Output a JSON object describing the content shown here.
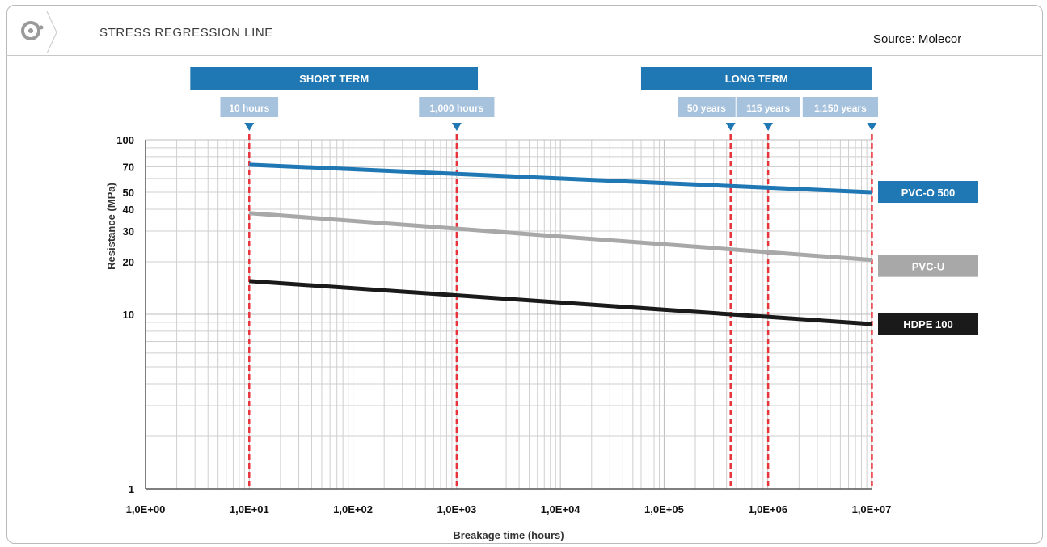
{
  "header": {
    "title": "STRESS REGRESSION LINE",
    "source": "Source: Molecor",
    "logo_icon": "molecor-logo-icon"
  },
  "colors": {
    "accent": "#1f77b4",
    "pvc_o": "#1f77b4",
    "pvc_u": "#a8a8a8",
    "hdpe": "#1a1a1a",
    "marker_line": "#e8333a",
    "time_box": "#a7c2dd",
    "grid": "#cfcfcf"
  },
  "chart_data": {
    "type": "line",
    "title": "STRESS REGRESSION LINE",
    "xlabel": "Breakage time (hours)",
    "ylabel": "Resistance (MPa)",
    "x_scale": "log",
    "y_scale": "log",
    "xlim": [
      1,
      10000000
    ],
    "ylim": [
      1,
      100
    ],
    "grid": true,
    "x_ticks": [
      {
        "value": 1,
        "label": "1,0E+00"
      },
      {
        "value": 10,
        "label": "1,0E+01"
      },
      {
        "value": 100,
        "label": "1,0E+02"
      },
      {
        "value": 1000,
        "label": "1,0E+03"
      },
      {
        "value": 10000,
        "label": "1,0E+04"
      },
      {
        "value": 100000,
        "label": "1,0E+05"
      },
      {
        "value": 1000000,
        "label": "1,0E+06"
      },
      {
        "value": 10000000,
        "label": "1,0E+07"
      }
    ],
    "y_ticks": [
      {
        "value": 1,
        "label": "1"
      },
      {
        "value": 10,
        "label": "10"
      },
      {
        "value": 20,
        "label": "20"
      },
      {
        "value": 30,
        "label": "30"
      },
      {
        "value": 40,
        "label": "40"
      },
      {
        "value": 50,
        "label": "50"
      },
      {
        "value": 70,
        "label": "70"
      },
      {
        "value": 100,
        "label": "100"
      }
    ],
    "series": [
      {
        "name": "PVC-O 500",
        "color": "#1f77b4",
        "x": [
          10,
          10000000
        ],
        "y": [
          72,
          50
        ]
      },
      {
        "name": "PVC-U",
        "color": "#a8a8a8",
        "x": [
          10,
          10000000
        ],
        "y": [
          38,
          20.5
        ]
      },
      {
        "name": "HDPE 100",
        "color": "#1a1a1a",
        "x": [
          10,
          10000000
        ],
        "y": [
          15.5,
          8.8
        ]
      }
    ],
    "time_markers": [
      {
        "label": "10 hours",
        "x": 10
      },
      {
        "label": "1,000 hours",
        "x": 1000
      },
      {
        "label": "50 years",
        "x": 438000
      },
      {
        "label": "115 years",
        "x": 1007400
      },
      {
        "label": "1,150 years",
        "x": 10074000
      }
    ],
    "term_bands": [
      {
        "label": "SHORT TERM",
        "from": 2.7,
        "to": 1600
      },
      {
        "label": "LONG TERM",
        "from": 60000,
        "to": 10074000
      }
    ]
  }
}
